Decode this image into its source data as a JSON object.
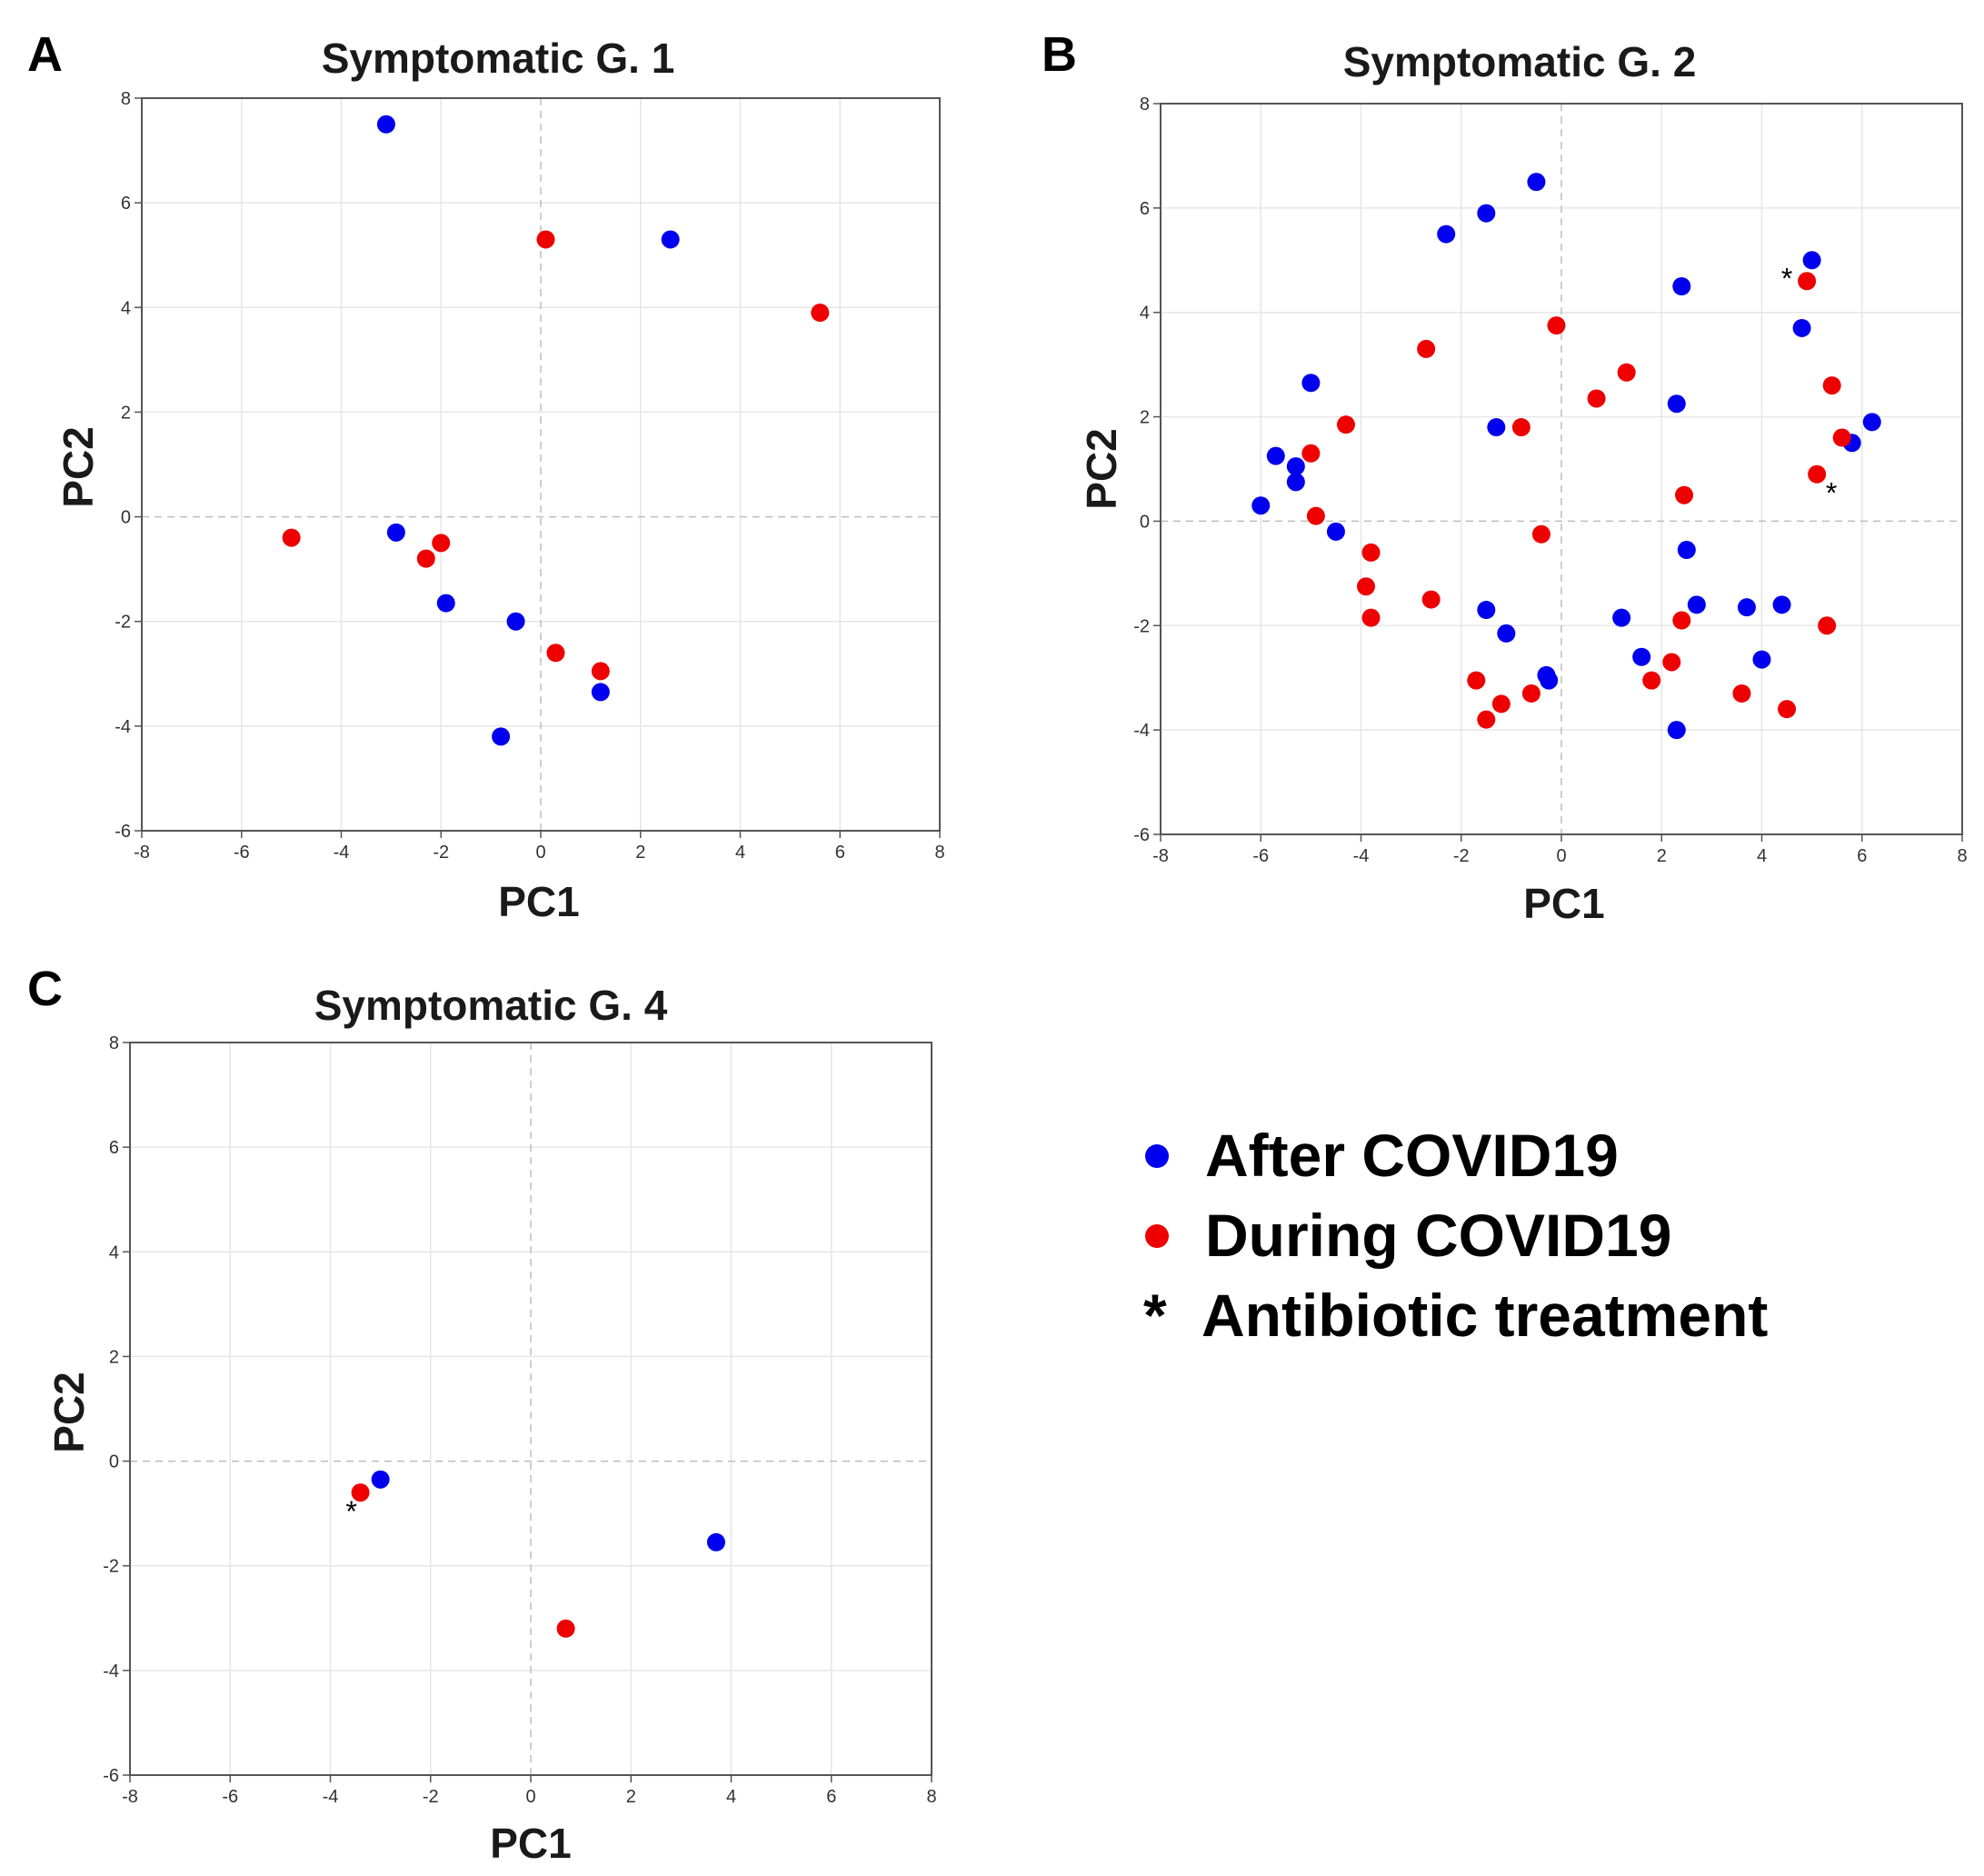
{
  "colors": {
    "after": "#0000ee",
    "during": "#ee0000"
  },
  "legend": {
    "after": "After COVID19",
    "during": "During COVID19",
    "star_symbol": "*",
    "star_label": "Antibiotic treatment"
  },
  "chart_data": [
    {
      "type": "scatter",
      "panel": "A",
      "title": "Symptomatic G. 1",
      "xlabel": "PC1",
      "ylabel": "PC2",
      "xlim": [
        -8,
        8
      ],
      "ylim": [
        -6,
        8
      ],
      "xticks": [
        "-8",
        "-6",
        "-4",
        "-2",
        "0",
        "2",
        "4",
        "6",
        "8"
      ],
      "yticks": [
        "8",
        "6",
        "4",
        "2",
        "0",
        "-2",
        "-4",
        "-6"
      ],
      "series": [
        {
          "name": "After COVID19",
          "color_key": "after",
          "x": [
            -3.1,
            2.6,
            -2.9,
            -1.9,
            -0.5,
            1.2,
            -0.8
          ],
          "y": [
            7.5,
            5.3,
            -0.3,
            -1.65,
            -2.0,
            -3.35,
            -4.2
          ]
        },
        {
          "name": "During COVID19",
          "color_key": "during",
          "x": [
            0.1,
            5.6,
            -5.0,
            -2.3,
            -2.0,
            0.3,
            1.2
          ],
          "y": [
            5.3,
            3.9,
            -0.4,
            -0.8,
            -0.5,
            -2.6,
            -2.95
          ]
        }
      ],
      "antibiotic": []
    },
    {
      "type": "scatter",
      "panel": "B",
      "title": "Symptomatic G. 2",
      "xlabel": "PC1",
      "ylabel": "PC2",
      "xlim": [
        -8,
        8
      ],
      "ylim": [
        -6,
        8
      ],
      "xticks": [
        "-8",
        "-6",
        "-4",
        "-2",
        "0",
        "2",
        "4",
        "6",
        "8"
      ],
      "yticks": [
        "8",
        "6",
        "4",
        "2",
        "0",
        "-2",
        "-4",
        "-6"
      ],
      "series": [
        {
          "name": "After COVID19",
          "color_key": "after",
          "x": [
            -0.5,
            -1.5,
            -2.3,
            2.4,
            5.0,
            4.8,
            2.3,
            -5.0,
            -1.3,
            6.2,
            5.8,
            -5.7,
            -5.3,
            -5.3,
            -6.0,
            -4.5,
            2.5,
            -1.5,
            -1.1,
            -0.3,
            -0.25,
            1.2,
            1.6,
            2.7,
            3.7,
            4.4,
            4.0,
            2.3
          ],
          "y": [
            6.5,
            5.9,
            5.5,
            4.5,
            5.0,
            3.7,
            2.25,
            2.65,
            1.8,
            1.9,
            1.5,
            1.25,
            1.05,
            0.75,
            0.3,
            -0.2,
            -0.55,
            -1.7,
            -2.15,
            -2.95,
            -3.05,
            -1.85,
            -2.6,
            -1.6,
            -1.65,
            -1.6,
            -2.65,
            -4.0
          ]
        },
        {
          "name": "During COVID19",
          "color_key": "during",
          "x": [
            4.9,
            5.4,
            -0.1,
            -2.7,
            1.3,
            0.7,
            -0.8,
            -4.3,
            5.6,
            -5.0,
            5.1,
            2.45,
            -4.9,
            -0.4,
            -3.8,
            -3.9,
            -2.6,
            -3.8,
            2.4,
            5.3,
            -1.7,
            -1.5,
            -1.2,
            -0.6,
            1.8,
            2.2,
            3.6,
            4.5
          ],
          "y": [
            4.6,
            2.6,
            3.75,
            3.3,
            2.85,
            2.35,
            1.8,
            1.85,
            1.6,
            1.3,
            0.9,
            0.5,
            0.1,
            -0.25,
            -0.6,
            -1.25,
            -1.5,
            -1.85,
            -1.9,
            -2.0,
            -3.05,
            -3.8,
            -3.5,
            -3.3,
            -3.05,
            -2.7,
            -3.3,
            -3.6
          ]
        }
      ],
      "antibiotic": [
        {
          "x": 4.9,
          "y": 4.6,
          "side": "left"
        },
        {
          "x": 5.1,
          "y": 0.9,
          "side": "below-right"
        }
      ]
    },
    {
      "type": "scatter",
      "panel": "C",
      "title": "Symptomatic G. 4",
      "xlabel": "PC1",
      "ylabel": "PC2",
      "xlim": [
        -8,
        8
      ],
      "ylim": [
        -6,
        8
      ],
      "xticks": [
        "-8",
        "-6",
        "-4",
        "-2",
        "0",
        "2",
        "4",
        "6",
        "8"
      ],
      "yticks": [
        "8",
        "6",
        "4",
        "2",
        "0",
        "-2",
        "-4",
        "-6"
      ],
      "series": [
        {
          "name": "After COVID19",
          "color_key": "after",
          "x": [
            -3.0,
            3.7
          ],
          "y": [
            -0.35,
            -1.55
          ]
        },
        {
          "name": "During COVID19",
          "color_key": "during",
          "x": [
            -3.4,
            0.7
          ],
          "y": [
            -0.6,
            -3.2
          ]
        }
      ],
      "antibiotic": [
        {
          "x": -3.4,
          "y": -0.6,
          "side": "below-left"
        }
      ]
    }
  ]
}
